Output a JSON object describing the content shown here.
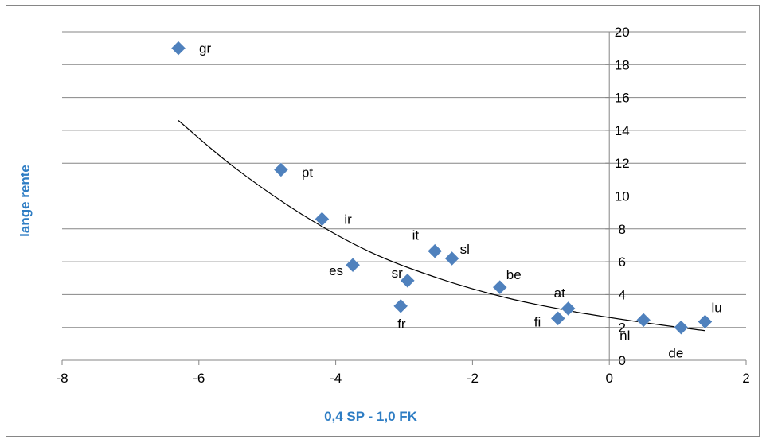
{
  "chart_data": {
    "type": "scatter",
    "title": "",
    "xlabel": "0,4 SP - 1,0 FK",
    "ylabel": "lange rente",
    "xlim": [
      -8,
      2
    ],
    "ylim": [
      0,
      20
    ],
    "x_ticks": [
      -8,
      -6,
      -4,
      -2,
      0,
      2
    ],
    "y_ticks": [
      0,
      2,
      4,
      6,
      8,
      10,
      12,
      14,
      16,
      18,
      20
    ],
    "grid": "horizontal",
    "legend": "none",
    "marker": "diamond",
    "marker_color": "#4F81BD",
    "series": [
      {
        "points": [
          {
            "label": "gr",
            "x": -6.3,
            "y": 19.0
          },
          {
            "label": "pt",
            "x": -4.8,
            "y": 11.6
          },
          {
            "label": "ir",
            "x": -4.2,
            "y": 8.6
          },
          {
            "label": "es",
            "x": -3.75,
            "y": 5.8
          },
          {
            "label": "it",
            "x": -2.55,
            "y": 6.65
          },
          {
            "label": "sl",
            "x": -2.3,
            "y": 6.2
          },
          {
            "label": "sr",
            "x": -2.95,
            "y": 4.85
          },
          {
            "label": "fr",
            "x": -3.05,
            "y": 3.3
          },
          {
            "label": "be",
            "x": -1.6,
            "y": 4.45
          },
          {
            "label": "at",
            "x": -0.6,
            "y": 3.15
          },
          {
            "label": "fi",
            "x": -0.75,
            "y": 2.55
          },
          {
            "label": "nl",
            "x": 0.5,
            "y": 2.45
          },
          {
            "label": "de",
            "x": 1.05,
            "y": 2.0
          },
          {
            "label": "lu",
            "x": 1.4,
            "y": 2.35
          }
        ]
      }
    ],
    "trendline": {
      "type": "exponential",
      "x": [
        -6.3,
        -5.5,
        -4.5,
        -3.5,
        -2.5,
        -1.5,
        -0.5,
        0.5,
        1.4
      ],
      "y": [
        14.6,
        11.8,
        8.9,
        6.6,
        5.0,
        3.8,
        2.95,
        2.3,
        1.8
      ]
    }
  }
}
